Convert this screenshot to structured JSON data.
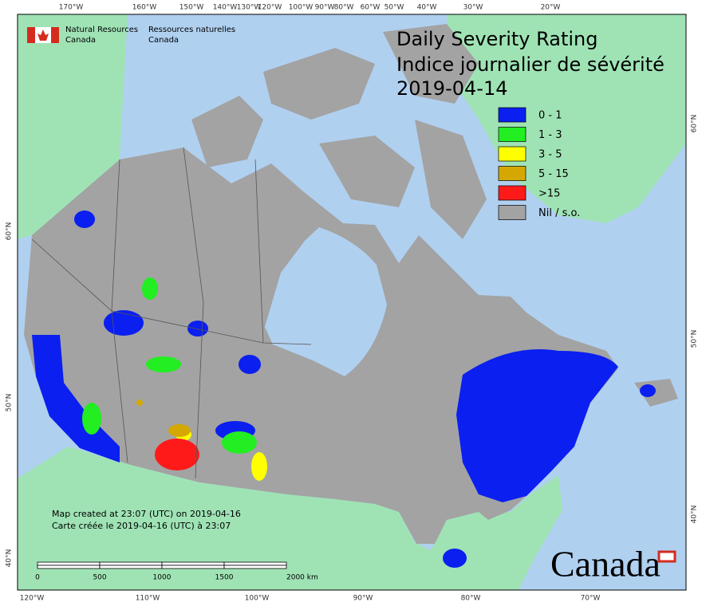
{
  "header": {
    "org_en": "Natural Resources",
    "org_en_2": "Canada",
    "org_fr": "Ressources naturelles",
    "org_fr_2": "Canada"
  },
  "title": {
    "line1": "Daily Severity Rating",
    "line2": "Indice journalier de sévérité",
    "date": "2019-04-14"
  },
  "legend": [
    {
      "label": "0 - 1",
      "color": "#0a1ff0"
    },
    {
      "label": "1 - 3",
      "color": "#22ee22"
    },
    {
      "label": "3 - 5",
      "color": "#ffff00"
    },
    {
      "label": "5 - 15",
      "color": "#d4a800"
    },
    {
      "label": ">15",
      "color": "#ff1a1a"
    },
    {
      "label": "Nil / s.o.",
      "color": "#a3a3a3"
    }
  ],
  "graticule": {
    "top": [
      "170°W",
      "160°W",
      "150°W",
      "140°W",
      "130°W",
      "120°W",
      "100°W",
      "90°W",
      "80°W",
      "60°W",
      "50°W",
      "40°W",
      "30°W",
      "20°W"
    ],
    "bottom": [
      "120°W",
      "110°W",
      "100°W",
      "90°W",
      "80°W",
      "70°W"
    ],
    "left": [
      "60°N",
      "50°N",
      "40°N"
    ],
    "right": [
      "60°N",
      "50°N",
      "40°N"
    ]
  },
  "credits": {
    "en": "Map created at 23:07 (UTC) on 2019-04-16",
    "fr": "Carte créée le 2019-04-16 (UTC) à 23:07"
  },
  "scale_bar": [
    "0",
    "500",
    "1000",
    "1500",
    "2000 km"
  ],
  "wordmark": "Canada"
}
